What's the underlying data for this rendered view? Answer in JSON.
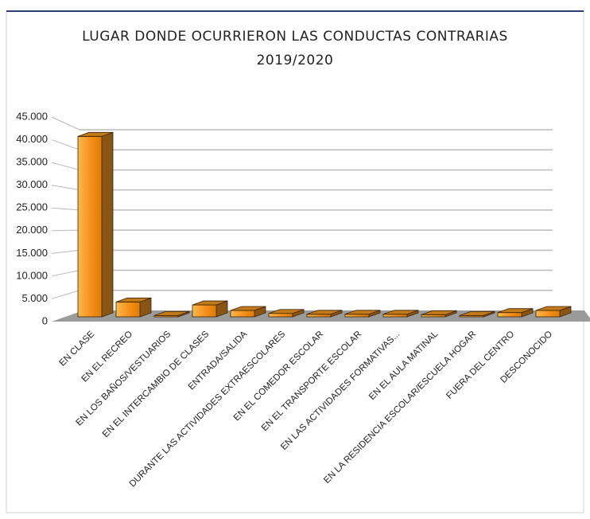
{
  "chart_data": {
    "type": "bar3d",
    "title": "LUGAR DONDE OCURRIERON LAS CONDUCTAS CONTRARIAS",
    "subtitle": "2019/2020",
    "categories": [
      "EN CLASE",
      "EN EL RECREO",
      "EN LOS BAÑOS/VESTUARIOS",
      "EN EL INTERCAMBIO DE CLASES",
      "ENTRADA/SALIDA",
      "DURANTE LAS ACTIVIDADES EXTRAESCOLARES",
      "EN EL COMEDOR ESCOLAR",
      "EN EL TRANSPORTE ESCOLAR",
      "EN LAS ACTIVIDADES FORMATIVAS...",
      "EN EL AULA MATINAL",
      "EN LA RESIDENCIA ESCOLAR/ESCUELA HOGAR",
      "FUERA DEL CENTRO",
      "DESCONOCIDO"
    ],
    "values": [
      42500,
      3500,
      300,
      2800,
      1500,
      800,
      600,
      600,
      600,
      500,
      300,
      1000,
      1500
    ],
    "color": "#f7931e",
    "ylim": [
      0,
      45000
    ],
    "yticks": [
      0,
      {
        "value": 5000,
        "label": "5.000"
      },
      {
        "value": 10000,
        "label": "10.000"
      },
      {
        "value": 15000,
        "label": "15.000"
      },
      {
        "value": 20000,
        "label": "20.000"
      },
      {
        "value": 25000,
        "label": "25.000"
      },
      {
        "value": 30000,
        "label": "30.000"
      },
      {
        "value": 35000,
        "label": "35.000"
      },
      {
        "value": 40000,
        "label": "40.000"
      },
      {
        "value": 45000,
        "label": "45.000"
      }
    ],
    "grid": true
  }
}
